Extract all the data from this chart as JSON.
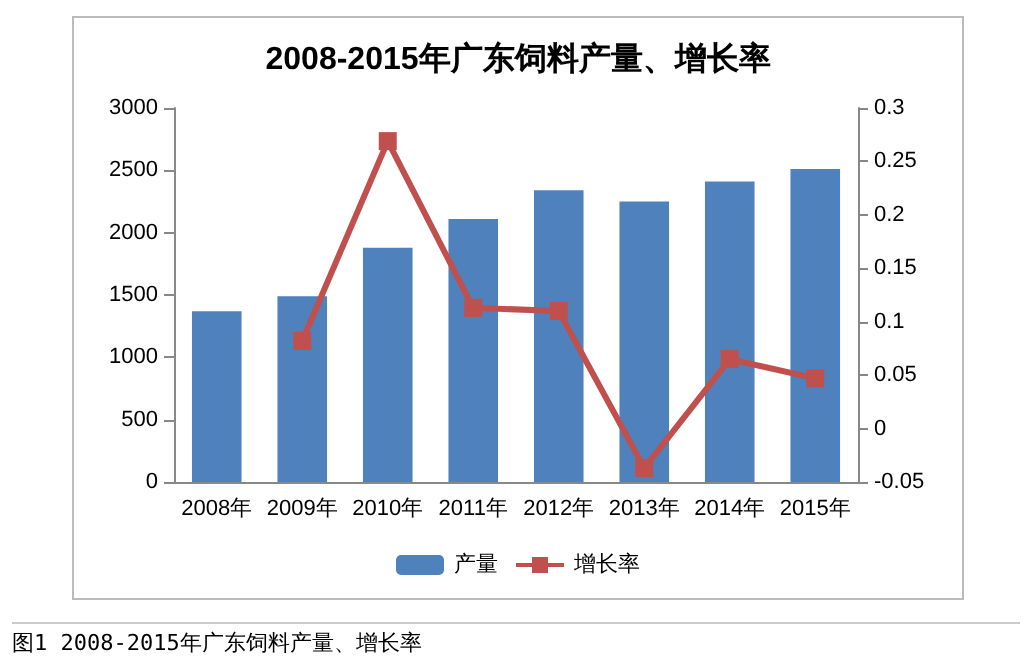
{
  "chart_data": {
    "type": "bar",
    "title": "2008-2015年广东饲料产量、增长率",
    "categories": [
      "2008年",
      "2009年",
      "2010年",
      "2011年",
      "2012年",
      "2013年",
      "2014年",
      "2015年"
    ],
    "series": [
      {
        "name": "产量",
        "color": "#4f81bd",
        "values": [
          1370,
          1490,
          1880,
          2110,
          2340,
          2250,
          2410,
          2510
        ]
      },
      {
        "name": "增长率",
        "type": "line",
        "axis": "y2",
        "color": "#c0504d",
        "marker": "square",
        "values": [
          null,
          0.082,
          0.269,
          0.113,
          0.11,
          -0.037,
          0.065,
          0.047
        ]
      }
    ],
    "ylim": [
      0,
      3000
    ],
    "yticks": [
      0,
      500,
      1000,
      1500,
      2000,
      2500,
      3000
    ],
    "y2lim": [
      -0.05,
      0.3
    ],
    "y2ticks": [
      -0.05,
      0,
      0.05,
      0.1,
      0.15,
      0.2,
      0.25,
      0.3
    ],
    "grid": false,
    "legend": "bottom",
    "annotations": [
      "图1 2008-2015年广东饲料产量、增长率"
    ]
  }
}
